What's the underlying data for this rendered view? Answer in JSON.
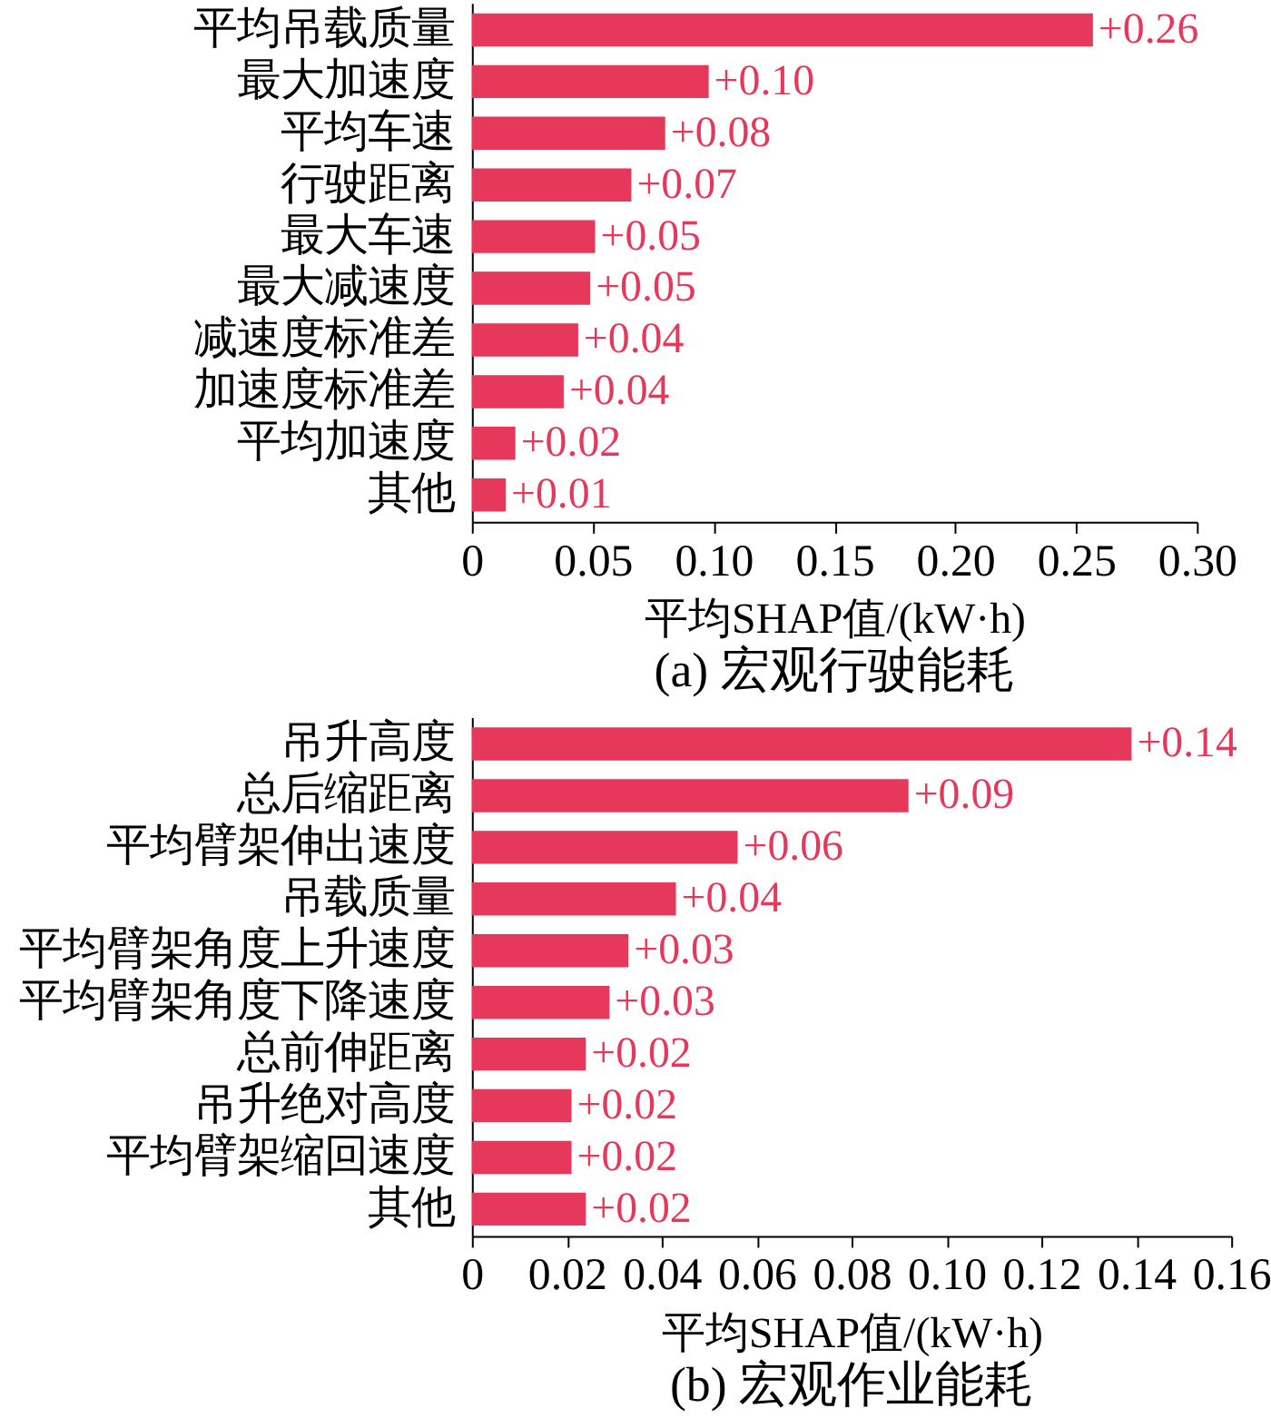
{
  "chart_data": [
    {
      "type": "bar",
      "orientation": "horizontal",
      "title": "(a) 宏观行驶能耗",
      "xlabel": "平均SHAP值/(kW·h)",
      "color": "#e5385a",
      "categories": [
        "平均吊载质量",
        "最大加速度",
        "平均车速",
        "行驶距离",
        "最大车速",
        "最大减速度",
        "减速度标准差",
        "加速度标准差",
        "平均加速度",
        "其他"
      ],
      "values": [
        0.257,
        0.098,
        0.08,
        0.066,
        0.051,
        0.049,
        0.044,
        0.038,
        0.018,
        0.014
      ],
      "value_labels": [
        "+0.26",
        "+0.10",
        "+0.08",
        "+0.07",
        "+0.05",
        "+0.05",
        "+0.04",
        "+0.04",
        "+0.02",
        "+0.01"
      ],
      "xlim": [
        0,
        0.3
      ],
      "xticks": [
        0,
        0.05,
        {
          "value": 0.1,
          "label": "0.10"
        },
        0.15,
        {
          "value": 0.2,
          "label": "0.20"
        },
        0.25,
        {
          "value": 0.3,
          "label": "0.30"
        }
      ]
    },
    {
      "type": "bar",
      "orientation": "horizontal",
      "title": "(b) 宏观作业能耗",
      "xlabel": "平均SHAP值/(kW·h)",
      "color": "#e5385a",
      "categories": [
        "吊升高度",
        "总后缩距离",
        "平均臂架伸出速度",
        "吊载质量",
        "平均臂架角度上升速度",
        "平均臂架角度下降速度",
        "总前伸距离",
        "吊升绝对高度",
        "平均臂架缩回速度",
        "其他"
      ],
      "values": [
        0.139,
        0.092,
        0.056,
        0.043,
        0.033,
        0.029,
        0.024,
        0.021,
        0.021,
        0.024
      ],
      "value_labels": [
        "+0.14",
        "+0.09",
        "+0.06",
        "+0.04",
        "+0.03",
        "+0.03",
        "+0.02",
        "+0.02",
        "+0.02",
        "+0.02"
      ],
      "xlim": [
        0,
        0.16
      ],
      "xticks": [
        0,
        0.02,
        0.04,
        0.06,
        0.08,
        {
          "value": 0.1,
          "label": "0.10"
        },
        0.12,
        0.14,
        0.16
      ]
    }
  ]
}
